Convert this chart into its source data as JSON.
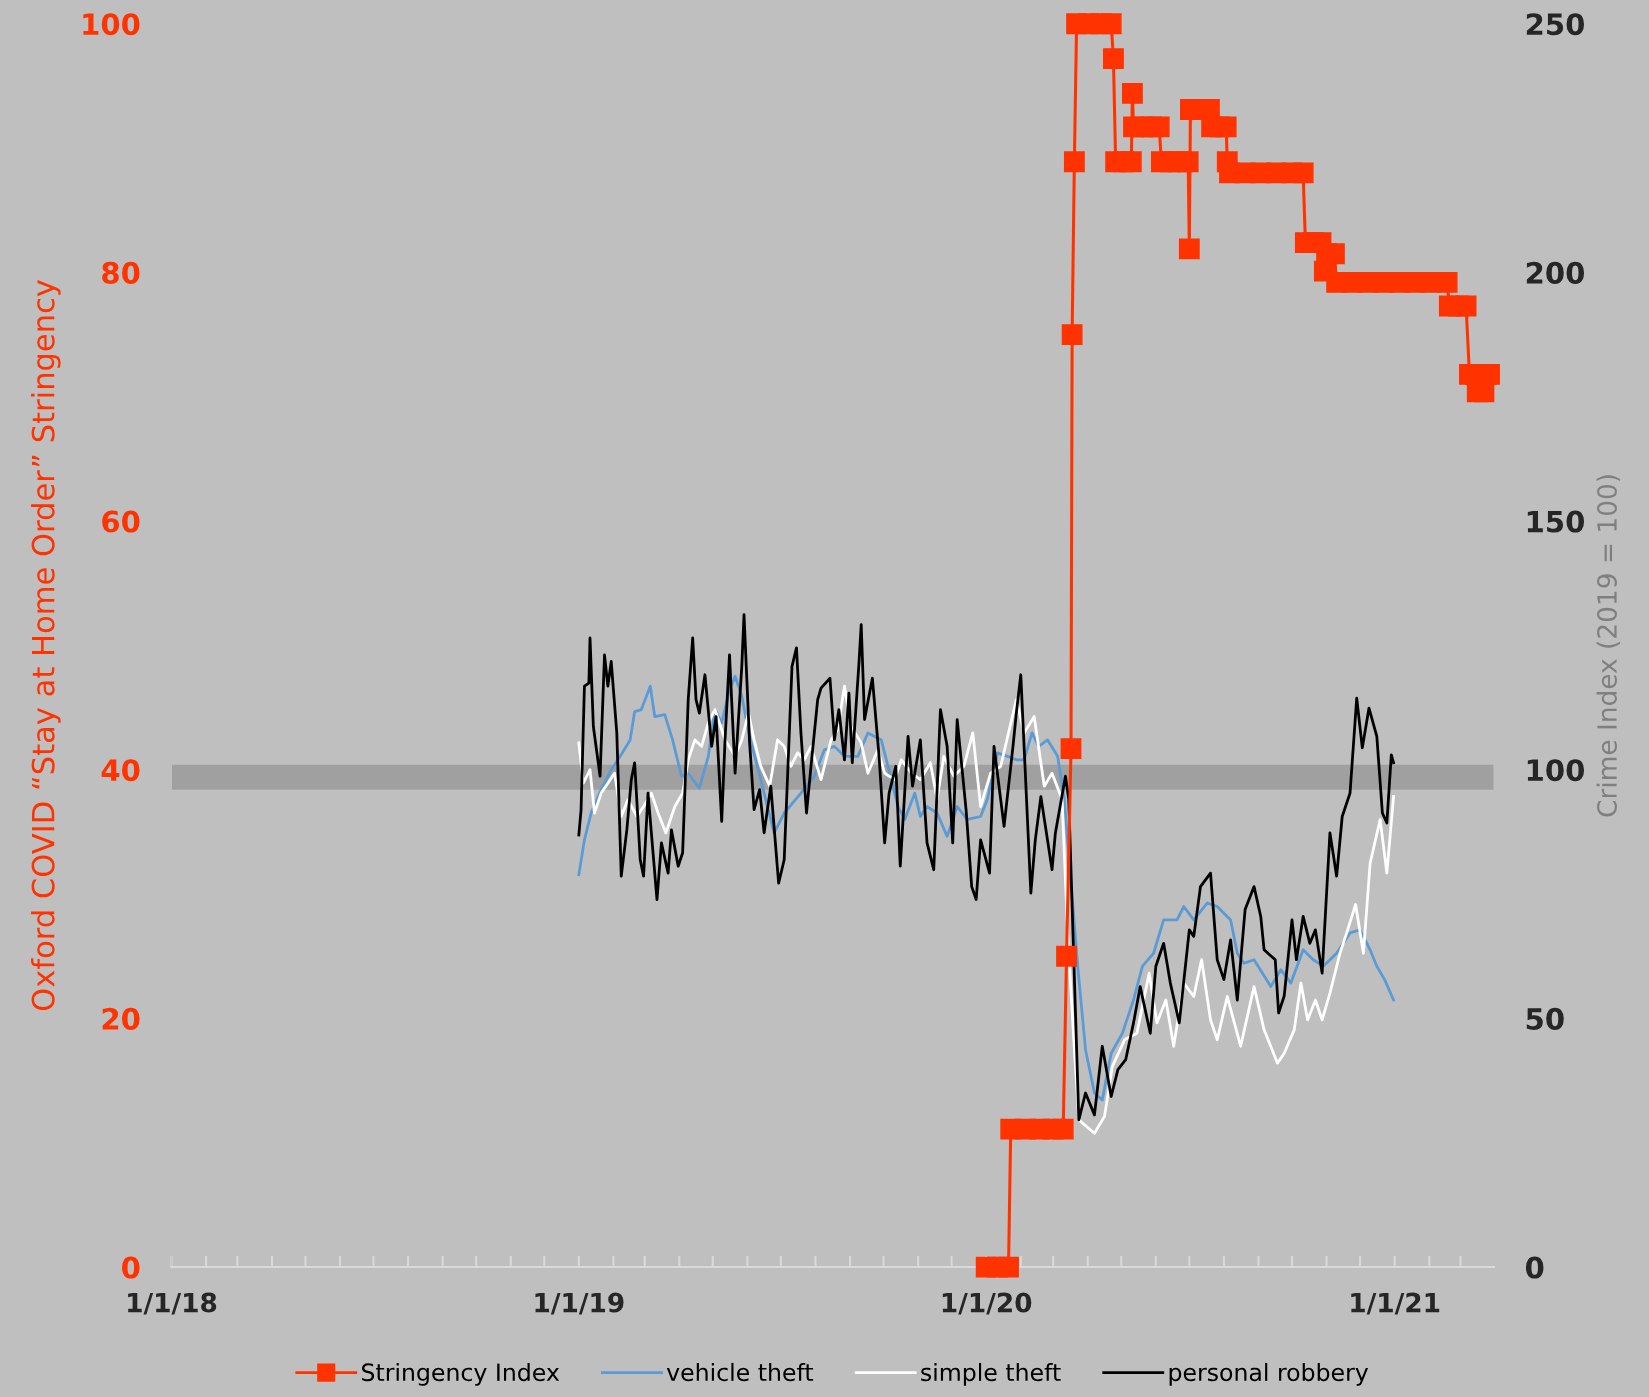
{
  "chart_data": {
    "type": "line",
    "ylabel": "Oxford COVID “Stay at Home Order” Stringency",
    "y2label": "Crime Index (2019 = 100)",
    "xlim": [
      "2018-01-01",
      "2021-03-31"
    ],
    "xticks": [
      {
        "value": "2018-01-01",
        "label": "1/1/18"
      },
      {
        "value": "2018-02-01",
        "label": null
      },
      {
        "value": "2018-03-01",
        "label": null
      },
      {
        "value": "2018-04-01",
        "label": null
      },
      {
        "value": "2018-05-01",
        "label": null
      },
      {
        "value": "2018-06-01",
        "label": null
      },
      {
        "value": "2018-07-01",
        "label": null
      },
      {
        "value": "2018-08-01",
        "label": null
      },
      {
        "value": "2018-09-01",
        "label": null
      },
      {
        "value": "2018-10-01",
        "label": null
      },
      {
        "value": "2018-11-01",
        "label": null
      },
      {
        "value": "2018-12-01",
        "label": null
      },
      {
        "value": "2019-01-01",
        "label": "1/1/19"
      },
      {
        "value": "2019-02-01",
        "label": null
      },
      {
        "value": "2019-03-01",
        "label": null
      },
      {
        "value": "2019-04-01",
        "label": null
      },
      {
        "value": "2019-05-01",
        "label": null
      },
      {
        "value": "2019-06-01",
        "label": null
      },
      {
        "value": "2019-07-01",
        "label": null
      },
      {
        "value": "2019-08-01",
        "label": null
      },
      {
        "value": "2019-09-01",
        "label": null
      },
      {
        "value": "2019-10-01",
        "label": null
      },
      {
        "value": "2019-11-01",
        "label": null
      },
      {
        "value": "2019-12-01",
        "label": null
      },
      {
        "value": "2020-01-01",
        "label": "1/1/20"
      },
      {
        "value": "2020-02-01",
        "label": null
      },
      {
        "value": "2020-03-01",
        "label": null
      },
      {
        "value": "2020-04-01",
        "label": null
      },
      {
        "value": "2020-05-01",
        "label": null
      },
      {
        "value": "2020-06-01",
        "label": null
      },
      {
        "value": "2020-07-01",
        "label": null
      },
      {
        "value": "2020-08-01",
        "label": null
      },
      {
        "value": "2020-09-01",
        "label": null
      },
      {
        "value": "2020-10-01",
        "label": null
      },
      {
        "value": "2020-11-01",
        "label": null
      },
      {
        "value": "2020-12-01",
        "label": null
      },
      {
        "value": "2021-01-01",
        "label": "1/1/21"
      },
      {
        "value": "2021-02-01",
        "label": null
      },
      {
        "value": "2021-03-01",
        "label": null
      }
    ],
    "ylim": [
      0,
      100
    ],
    "yticks": [
      0,
      20,
      40,
      60,
      80,
      100
    ],
    "y2lim": [
      0,
      250
    ],
    "y2ticks": [
      0,
      50,
      100,
      150,
      200,
      250
    ],
    "grid": false,
    "legend": "bottom",
    "bands": [
      {
        "axis": "y2",
        "from": 96,
        "to": 101,
        "color": "#a0a0a0"
      }
    ],
    "series": [
      {
        "name": "Stringency Index",
        "color": "#ff3300",
        "marker": "square",
        "x": [
          "2020-01-01",
          "2020-01-11",
          "2020-01-21",
          "2020-01-23",
          "2020-02-05",
          "2020-02-18",
          "2020-03-01",
          "2020-03-10",
          "2020-03-13",
          "2020-03-17",
          "2020-03-18",
          "2020-03-20",
          "2020-03-22",
          "2020-04-02",
          "2020-04-13",
          "2020-04-22",
          "2020-04-24",
          "2020-04-26",
          "2020-05-03",
          "2020-05-10",
          "2020-05-11",
          "2020-05-12",
          "2020-05-20",
          "2020-05-28",
          "2020-06-04",
          "2020-06-06",
          "2020-06-14",
          "2020-06-22",
          "2020-06-30",
          "2020-07-01",
          "2020-07-02",
          "2020-07-10",
          "2020-07-19",
          "2020-07-21",
          "2020-07-28",
          "2020-08-03",
          "2020-08-04",
          "2020-08-06",
          "2020-08-20",
          "2020-09-03",
          "2020-09-17",
          "2020-10-01",
          "2020-10-11",
          "2020-10-13",
          "2020-10-20",
          "2020-10-27",
          "2020-10-30",
          "2020-11-01",
          "2020-11-08",
          "2020-11-10",
          "2020-11-24",
          "2020-12-08",
          "2020-12-22",
          "2021-01-05",
          "2021-01-19",
          "2021-02-02",
          "2021-02-17",
          "2021-02-19",
          "2021-02-27",
          "2021-03-06",
          "2021-03-09",
          "2021-03-14",
          "2021-03-16",
          "2021-03-22",
          "2021-03-24",
          "2021-03-27"
        ],
        "values": [
          0,
          0,
          0,
          11.1,
          11.1,
          11.1,
          11.1,
          11.1,
          25,
          41.7,
          75,
          88.9,
          100,
          100,
          100,
          100,
          97.2,
          88.9,
          88.9,
          88.9,
          94.4,
          91.7,
          91.7,
          91.7,
          91.7,
          88.9,
          88.9,
          88.9,
          88.9,
          81.9,
          93.1,
          93.1,
          93.1,
          91.7,
          91.7,
          91.7,
          88.9,
          88,
          88,
          88,
          88,
          88,
          88,
          82.4,
          82.4,
          82.4,
          80.1,
          81.5,
          81.5,
          79.2,
          79.2,
          79.2,
          79.2,
          79.2,
          79.2,
          79.2,
          79.2,
          77.3,
          77.3,
          77.3,
          71.8,
          71.8,
          70.4,
          70.4,
          71.8,
          71.8
        ]
      },
      {
        "name": "vehicle theft",
        "color": "#5b9bd5",
        "axis": "y2",
        "x": [
          "2019-01-01",
          "2019-01-06",
          "2019-01-12",
          "2019-01-21",
          "2019-01-30",
          "2019-02-07",
          "2019-02-16",
          "2019-02-20",
          "2019-02-26",
          "2019-03-06",
          "2019-03-10",
          "2019-03-19",
          "2019-03-26",
          "2019-04-03",
          "2019-04-09",
          "2019-04-19",
          "2019-04-27",
          "2019-05-03",
          "2019-05-09",
          "2019-05-16",
          "2019-05-21",
          "2019-05-27",
          "2019-06-03",
          "2019-06-13",
          "2019-06-19",
          "2019-06-25",
          "2019-07-04",
          "2019-07-19",
          "2019-07-31",
          "2019-08-09",
          "2019-08-18",
          "2019-08-27",
          "2019-09-08",
          "2019-09-17",
          "2019-09-29",
          "2019-10-05",
          "2019-10-14",
          "2019-10-20",
          "2019-10-29",
          "2019-11-03",
          "2019-11-09",
          "2019-11-18",
          "2019-11-27",
          "2019-12-06",
          "2019-12-15",
          "2019-12-27",
          "2020-01-02",
          "2020-01-11",
          "2020-01-20",
          "2020-01-28",
          "2020-02-04",
          "2020-02-11",
          "2020-02-17",
          "2020-02-25",
          "2020-03-05",
          "2020-03-11",
          "2020-03-23",
          "2020-03-30",
          "2020-04-07",
          "2020-04-14",
          "2020-04-22",
          "2020-05-02",
          "2020-05-12",
          "2020-05-20",
          "2020-05-30",
          "2020-06-08",
          "2020-06-20",
          "2020-06-26",
          "2020-07-05",
          "2020-07-17",
          "2020-07-26",
          "2020-08-07",
          "2020-08-13",
          "2020-08-19",
          "2020-08-28",
          "2020-09-12",
          "2020-09-21",
          "2020-09-30",
          "2020-10-11",
          "2020-10-20",
          "2020-10-29",
          "2020-11-10",
          "2020-11-22",
          "2020-12-01",
          "2020-12-10",
          "2020-12-16",
          "2020-12-23",
          "2020-12-31"
        ],
        "values": [
          78.9,
          85.9,
          91.3,
          96.0,
          100.0,
          102.7,
          106.0,
          111.7,
          112.1,
          116.8,
          110.7,
          111.1,
          106.0,
          98.7,
          99.3,
          96.3,
          102.7,
          112.1,
          109.4,
          116.1,
          118.8,
          114.8,
          106.7,
          98.0,
          92.6,
          87.3,
          91.3,
          95.3,
          98.7,
          104.0,
          104.7,
          102.7,
          102.7,
          107.4,
          106.0,
          100.7,
          92.6,
          90.0,
          95.3,
          90.6,
          92.6,
          91.3,
          86.6,
          92.6,
          90.0,
          90.6,
          94.0,
          103.4,
          102.7,
          102.0,
          102.0,
          107.4,
          104.7,
          106.0,
          102.7,
          94.0,
          60.5,
          43.7,
          35.0,
          33.6,
          43.0,
          47.0,
          53.7,
          60.5,
          63.1,
          69.8,
          69.8,
          72.5,
          69.8,
          73.2,
          72.5,
          69.8,
          63.1,
          61.1,
          61.8,
          56.4,
          59.8,
          57.1,
          63.8,
          61.8,
          60.5,
          63.1,
          67.2,
          67.8,
          63.8,
          60.5,
          57.8,
          53.7
        ]
      },
      {
        "name": "simple theft",
        "color": "#ffffff",
        "axis": "y2",
        "x": [
          "2019-01-01",
          "2019-01-05",
          "2019-01-11",
          "2019-01-15",
          "2019-01-21",
          "2019-01-27",
          "2019-02-02",
          "2019-02-08",
          "2019-02-14",
          "2019-02-22",
          "2019-02-28",
          "2019-03-07",
          "2019-03-13",
          "2019-03-20",
          "2019-03-28",
          "2019-04-04",
          "2019-04-09",
          "2019-04-15",
          "2019-04-21",
          "2019-04-27",
          "2019-05-03",
          "2019-05-12",
          "2019-05-21",
          "2019-05-27",
          "2019-06-02",
          "2019-06-07",
          "2019-06-13",
          "2019-06-21",
          "2019-06-28",
          "2019-07-04",
          "2019-07-10",
          "2019-07-16",
          "2019-07-22",
          "2019-07-28",
          "2019-08-06",
          "2019-08-15",
          "2019-08-21",
          "2019-08-27",
          "2019-09-02",
          "2019-09-11",
          "2019-09-17",
          "2019-09-26",
          "2019-10-02",
          "2019-10-11",
          "2019-10-17",
          "2019-10-26",
          "2019-11-03",
          "2019-11-12",
          "2019-11-18",
          "2019-11-24",
          "2019-12-03",
          "2019-12-12",
          "2019-12-20",
          "2019-12-27",
          "2020-01-05",
          "2020-01-14",
          "2020-01-28",
          "2020-02-04",
          "2020-02-13",
          "2020-02-22",
          "2020-02-29",
          "2020-03-09",
          "2020-03-14",
          "2020-03-20",
          "2020-03-24",
          "2020-04-07",
          "2020-04-16",
          "2020-04-23",
          "2020-05-04",
          "2020-05-15",
          "2020-05-26",
          "2020-06-02",
          "2020-06-10",
          "2020-06-17",
          "2020-06-26",
          "2020-07-05",
          "2020-07-12",
          "2020-07-20",
          "2020-07-26",
          "2020-08-04",
          "2020-08-16",
          "2020-08-28",
          "2020-09-06",
          "2020-09-18",
          "2020-09-24",
          "2020-10-03",
          "2020-10-09",
          "2020-10-15",
          "2020-10-22",
          "2020-10-28",
          "2020-11-04",
          "2020-11-13",
          "2020-11-19",
          "2020-11-27",
          "2020-12-04",
          "2020-12-10",
          "2020-12-19",
          "2020-12-25",
          "2020-12-31"
        ],
        "values": [
          105.4,
          97.3,
          100.0,
          91.3,
          95.3,
          97.3,
          99.3,
          90.6,
          94.0,
          90.6,
          92.6,
          95.3,
          91.3,
          87.3,
          92.6,
          95.3,
          102.0,
          106.0,
          104.7,
          109.4,
          112.1,
          106.0,
          102.7,
          106.0,
          111.4,
          106.0,
          100.7,
          96.7,
          106.0,
          104.7,
          100.7,
          103.4,
          102.0,
          104.7,
          98.0,
          106.0,
          108.1,
          116.8,
          108.7,
          105.4,
          99.3,
          104.0,
          99.3,
          98.0,
          102.0,
          99.3,
          98.0,
          101.4,
          94.0,
          102.7,
          98.7,
          100.7,
          107.4,
          92.6,
          99.3,
          100.7,
          114.1,
          107.4,
          110.7,
          96.7,
          99.3,
          94.0,
          67.2,
          43.7,
          29.6,
          26.9,
          30.3,
          40.3,
          45.7,
          47.0,
          59.1,
          49.1,
          53.7,
          44.4,
          57.1,
          54.4,
          61.8,
          49.7,
          45.7,
          54.4,
          44.4,
          56.4,
          47.7,
          41.0,
          43.0,
          47.7,
          57.1,
          49.7,
          53.7,
          49.7,
          55.1,
          63.1,
          67.2,
          72.9,
          63.1,
          81.2,
          90.0,
          79.2,
          94.6
        ]
      },
      {
        "name": "personal robbery",
        "color": "#000000",
        "axis": "y2",
        "x": [
          "2019-01-01",
          "2019-01-03",
          "2019-01-06",
          "2019-01-10",
          "2019-01-11",
          "2019-01-14",
          "2019-01-20",
          "2019-01-24",
          "2019-01-27",
          "2019-01-30",
          "2019-02-04",
          "2019-02-08",
          "2019-02-13",
          "2019-02-17",
          "2019-02-20",
          "2019-02-25",
          "2019-02-28",
          "2019-03-04",
          "2019-03-12",
          "2019-03-16",
          "2019-03-22",
          "2019-03-25",
          "2019-03-31",
          "2019-04-04",
          "2019-04-09",
          "2019-04-13",
          "2019-04-16",
          "2019-04-19",
          "2019-04-24",
          "2019-04-30",
          "2019-05-04",
          "2019-05-09",
          "2019-05-12",
          "2019-05-16",
          "2019-05-21",
          "2019-05-27",
          "2019-05-29",
          "2019-06-03",
          "2019-06-07",
          "2019-06-12",
          "2019-06-16",
          "2019-06-22",
          "2019-06-29",
          "2019-07-04",
          "2019-07-11",
          "2019-07-15",
          "2019-07-19",
          "2019-07-24",
          "2019-07-28",
          "2019-08-03",
          "2019-08-06",
          "2019-08-14",
          "2019-08-18",
          "2019-08-22",
          "2019-08-27",
          "2019-08-31",
          "2019-09-03",
          "2019-09-09",
          "2019-09-11",
          "2019-09-14",
          "2019-09-21",
          "2019-09-27",
          "2019-10-02",
          "2019-10-06",
          "2019-10-12",
          "2019-10-16",
          "2019-10-23",
          "2019-10-27",
          "2019-11-03",
          "2019-11-09",
          "2019-11-15",
          "2019-11-21",
          "2019-11-27",
          "2019-12-02",
          "2019-12-06",
          "2019-12-14",
          "2019-12-19",
          "2019-12-23",
          "2019-12-27",
          "2020-01-04",
          "2020-01-08",
          "2020-01-17",
          "2020-01-25",
          "2020-01-28",
          "2020-02-01",
          "2020-02-10",
          "2020-02-14",
          "2020-02-19",
          "2020-02-29",
          "2020-03-03",
          "2020-03-12",
          "2020-03-15",
          "2020-03-24",
          "2020-03-30",
          "2020-04-07",
          "2020-04-14",
          "2020-04-22",
          "2020-04-28",
          "2020-05-05",
          "2020-05-12",
          "2020-05-18",
          "2020-05-27",
          "2020-06-01",
          "2020-06-08",
          "2020-06-14",
          "2020-06-22",
          "2020-07-01",
          "2020-07-05",
          "2020-07-11",
          "2020-07-20",
          "2020-07-26",
          "2020-08-01",
          "2020-08-07",
          "2020-08-13",
          "2020-08-20",
          "2020-08-28",
          "2020-09-03",
          "2020-09-06",
          "2020-09-16",
          "2020-09-19",
          "2020-09-24",
          "2020-10-01",
          "2020-10-05",
          "2020-10-11",
          "2020-10-17",
          "2020-10-22",
          "2020-10-28",
          "2020-11-04",
          "2020-11-10",
          "2020-11-15",
          "2020-11-22",
          "2020-11-28",
          "2020-12-03",
          "2020-12-09",
          "2020-12-16",
          "2020-12-21",
          "2020-12-25",
          "2020-12-29",
          "2020-12-31"
        ],
        "values": [
          86.9,
          92.0,
          116.8,
          117.4,
          126.5,
          108.7,
          98.7,
          123.1,
          116.8,
          121.8,
          107.4,
          78.6,
          87.9,
          98.0,
          101.4,
          81.9,
          78.6,
          95.3,
          73.9,
          85.3,
          79.2,
          87.9,
          80.6,
          83.3,
          114.1,
          126.5,
          114.1,
          111.4,
          119.1,
          104.7,
          110.7,
          89.6,
          106.0,
          123.1,
          99.3,
          120.8,
          131.2,
          105.4,
          92.0,
          96.0,
          87.3,
          96.7,
          77.2,
          81.9,
          120.8,
          124.5,
          107.4,
          91.3,
          100.7,
          114.1,
          116.4,
          118.4,
          106.0,
          112.1,
          102.0,
          115.4,
          101.4,
          121.5,
          129.2,
          110.1,
          118.4,
          102.7,
          85.3,
          95.3,
          100.7,
          80.6,
          106.7,
          96.7,
          106.0,
          85.3,
          79.9,
          112.1,
          104.7,
          85.3,
          110.1,
          91.9,
          76.5,
          73.9,
          85.9,
          79.2,
          104.7,
          88.6,
          104.7,
          111.4,
          119.1,
          75.2,
          85.9,
          94.6,
          79.9,
          87.3,
          98.7,
          94.0,
          29.6,
          35.0,
          30.6,
          44.4,
          34.3,
          39.7,
          41.7,
          49.1,
          56.4,
          47.0,
          60.5,
          65.1,
          57.1,
          49.1,
          67.8,
          66.5,
          76.5,
          79.2,
          61.8,
          57.8,
          65.8,
          53.7,
          71.9,
          76.5,
          70.5,
          63.8,
          61.8,
          51.1,
          54.5,
          69.8,
          61.8,
          70.5,
          65.1,
          67.8,
          59.1,
          87.3,
          78.6,
          90.6,
          95.3,
          114.4,
          104.4,
          112.4,
          106.7,
          91.3,
          89.3,
          103.0,
          101.4
        ]
      }
    ]
  }
}
